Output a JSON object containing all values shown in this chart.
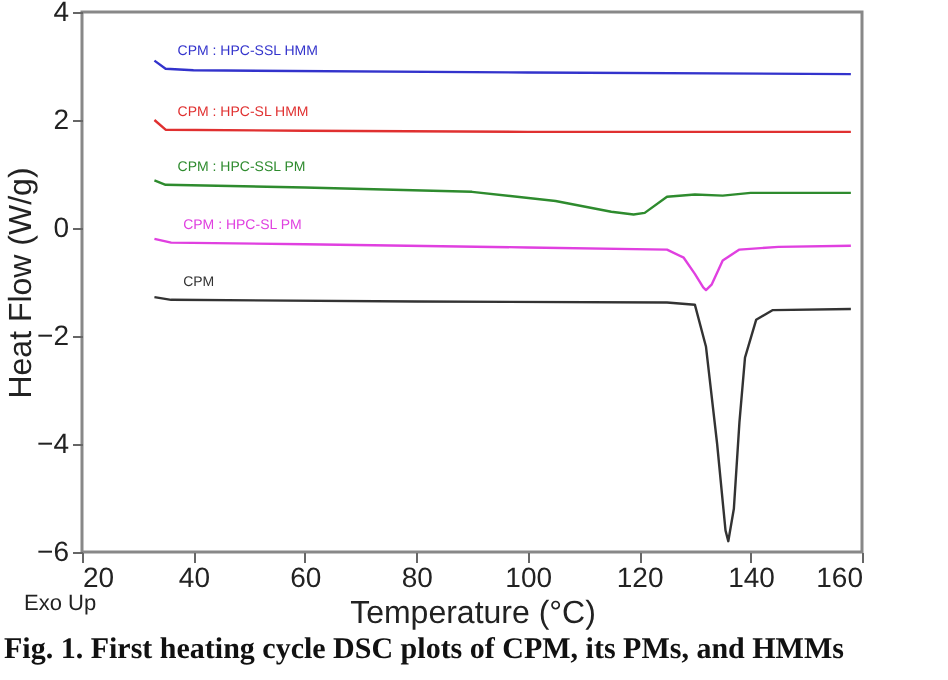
{
  "chart_data": {
    "type": "line",
    "xlabel": "Temperature (°C)",
    "ylabel": "Heat Flow (W/g)",
    "xlim": [
      20,
      160
    ],
    "xticks": [
      20,
      40,
      60,
      80,
      100,
      120,
      140,
      160
    ],
    "ylim": [
      -6,
      4
    ],
    "yticks": [
      -6,
      -4,
      -2,
      0,
      2,
      4
    ],
    "grid": false,
    "legend": false,
    "marker": "none",
    "line_style": "solid",
    "annotations": [
      "Exo Up",
      "Fig. 1. First heating cycle DSC plots of CPM, its PMs, and HMMs"
    ],
    "series": [
      {
        "name": "CPM : HPC-SSL HMM",
        "color": "#3333cc",
        "x": [
          33,
          35,
          40,
          100,
          158
        ],
        "values": [
          3.1,
          2.95,
          2.92,
          2.88,
          2.85
        ]
      },
      {
        "name": "CPM : HPC-SL HMM",
        "color": "#e03030",
        "x": [
          33,
          35,
          60,
          100,
          158
        ],
        "values": [
          2.0,
          1.82,
          1.8,
          1.78,
          1.78
        ]
      },
      {
        "name": "CPM : HPC-SSL PM",
        "color": "#2e8b2e",
        "x": [
          33,
          35,
          60,
          90,
          105,
          115,
          119,
          121,
          125,
          130,
          135,
          140,
          158
        ],
        "values": [
          0.88,
          0.8,
          0.75,
          0.67,
          0.5,
          0.3,
          0.25,
          0.28,
          0.58,
          0.62,
          0.6,
          0.65,
          0.65
        ]
      },
      {
        "name": "CPM : HPC-SL PM",
        "color": "#e040e0",
        "x": [
          33,
          36,
          60,
          100,
          125,
          128,
          130,
          131.5,
          132,
          133,
          135,
          138,
          145,
          158
        ],
        "values": [
          -0.2,
          -0.27,
          -0.3,
          -0.36,
          -0.4,
          -0.55,
          -0.85,
          -1.1,
          -1.15,
          -1.05,
          -0.6,
          -0.4,
          -0.35,
          -0.33
        ]
      },
      {
        "name": "CPM",
        "color": "#333333",
        "x": [
          33,
          36,
          80,
          125,
          130,
          132,
          134,
          135.5,
          136,
          137,
          138,
          139,
          141,
          144,
          158
        ],
        "values": [
          -1.28,
          -1.33,
          -1.36,
          -1.38,
          -1.42,
          -2.2,
          -4.0,
          -5.6,
          -5.8,
          -5.2,
          -3.6,
          -2.4,
          -1.7,
          -1.52,
          -1.5
        ]
      }
    ]
  }
}
